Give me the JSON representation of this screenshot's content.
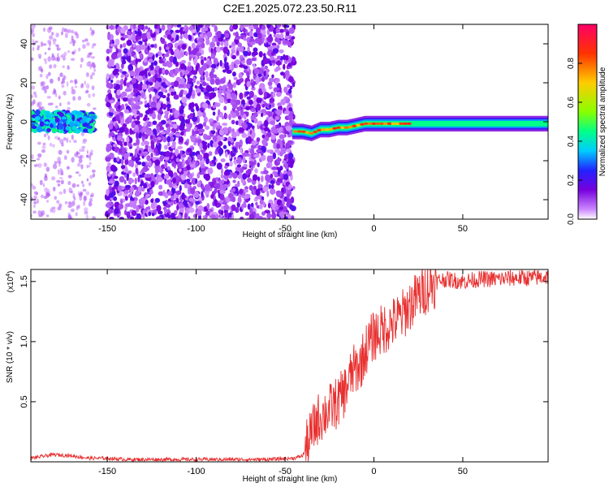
{
  "title": "C2E1.2025.072.23.50.R11",
  "chart_data": [
    {
      "type": "heatmap",
      "xlabel": "Height of straight line (km)",
      "ylabel": "Frequency (Hz)",
      "xlim": [
        -193,
        98
      ],
      "ylim": [
        -50,
        50
      ],
      "x_ticks": [
        -150,
        -100,
        -50,
        0,
        50
      ],
      "x_tick_labels": [
        "-150",
        "-100",
        "-50",
        "0",
        "50"
      ],
      "y_ticks": [
        -40,
        -20,
        0,
        20,
        40
      ],
      "y_tick_labels": [
        "-40",
        "-20",
        "0",
        "20",
        "40"
      ],
      "colorbar": {
        "label": "Normalized spectral amplitude",
        "range": [
          0,
          1
        ],
        "ticks": [
          0.0,
          0.2,
          0.4,
          0.6,
          0.8
        ],
        "tick_labels": [
          "0.0",
          "0.2",
          "0.4",
          "0.6",
          "0.8"
        ],
        "colors": [
          "#ffffff",
          "#cc88ff",
          "#7700dd",
          "#2222ff",
          "#00ccff",
          "#00ff88",
          "#88ff00",
          "#ffcc00",
          "#ff3300",
          "#ff0066"
        ]
      },
      "regions": [
        {
          "x_range": [
            -193,
            -157
          ],
          "description_freq_hz": [
            -5,
            5
          ],
          "level": 0.35
        },
        {
          "x_range": [
            -150,
            -45
          ],
          "description_freq_hz": [
            -50,
            50
          ],
          "level": 0.15
        },
        {
          "x_range": [
            -45,
            98
          ],
          "description_freq_hz": [
            -4,
            2
          ],
          "level": 0.8
        }
      ],
      "ridge": {
        "x": [
          -45,
          -40,
          -35,
          -30,
          -25,
          -20,
          -15,
          -10,
          -5,
          0,
          10,
          20,
          40,
          60,
          80,
          98
        ],
        "y": [
          -5,
          -5,
          -6,
          -4,
          -4,
          -3,
          -3,
          -2,
          -1,
          -1,
          -1,
          -1,
          -1,
          -1,
          -1,
          -1
        ]
      },
      "grid": false,
      "legend": "none"
    },
    {
      "type": "line",
      "xlabel": "Height of straight line (km)",
      "ylabel": "SNR (10 * v/v)",
      "y_multiplier_label": "(x10",
      "y_multiplier_exp": "4",
      "y_multiplier_close": ")",
      "xlim": [
        -193,
        98
      ],
      "ylim": [
        0,
        1.6
      ],
      "x_ticks": [
        -150,
        -100,
        -50,
        0,
        50
      ],
      "x_tick_labels": [
        "-150",
        "-100",
        "-50",
        "0",
        "50"
      ],
      "y_ticks": [
        0.5,
        1.0,
        1.5
      ],
      "y_tick_labels": [
        "0.5",
        "1.0",
        "1.5"
      ],
      "color": "#e83030",
      "series": [
        {
          "x": [
            -193,
            -180,
            -170,
            -160,
            -150,
            -140,
            -120,
            -100,
            -80,
            -60,
            -45,
            -40,
            -36,
            -32,
            -28,
            -24,
            -20,
            -16,
            -12,
            -8,
            -4,
            0,
            5,
            10,
            15,
            20,
            25,
            30,
            35,
            40,
            50,
            60,
            70,
            80,
            90,
            98
          ],
          "y": [
            0.03,
            0.06,
            0.05,
            0.03,
            0.03,
            0.02,
            0.02,
            0.02,
            0.02,
            0.02,
            0.03,
            0.05,
            0.2,
            0.35,
            0.4,
            0.45,
            0.5,
            0.6,
            0.75,
            0.8,
            0.95,
            1.05,
            1.1,
            1.15,
            1.2,
            1.3,
            1.38,
            1.45,
            1.5,
            1.52,
            1.5,
            1.52,
            1.52,
            1.53,
            1.53,
            1.54
          ]
        }
      ],
      "grid": false,
      "legend": "none"
    }
  ]
}
